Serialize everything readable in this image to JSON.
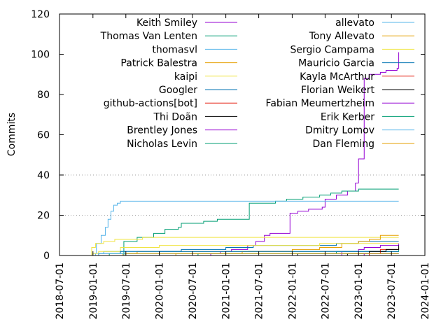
{
  "chart_data": {
    "type": "line",
    "title": "",
    "xlabel": "",
    "ylabel": "Commits",
    "x_axis": "date",
    "xlim": [
      "2018-07-01",
      "2024-01-01"
    ],
    "ylim": [
      0,
      120
    ],
    "x_ticks": [
      "2018-07-01",
      "2019-01-01",
      "2019-07-01",
      "2020-01-01",
      "2020-07-01",
      "2021-01-01",
      "2021-07-01",
      "2022-01-01",
      "2022-07-01",
      "2023-01-01",
      "2023-07-01",
      "2024-01-01"
    ],
    "y_ticks": [
      0,
      20,
      40,
      60,
      80,
      100,
      120
    ],
    "y_gridlines": [
      20,
      40
    ],
    "legend_position": "top, two columns",
    "series": [
      {
        "name": "Keith Smiley",
        "color": "#9400d3",
        "points": [
          [
            "2020-09-20",
            0
          ],
          [
            "2020-10-10",
            1
          ],
          [
            "2020-12-01",
            2
          ],
          [
            "2021-02-01",
            3
          ],
          [
            "2021-05-01",
            5
          ],
          [
            "2021-06-15",
            7
          ],
          [
            "2021-08-01",
            10
          ],
          [
            "2021-09-01",
            11
          ],
          [
            "2021-12-01",
            11
          ],
          [
            "2021-12-20",
            21
          ],
          [
            "2022-02-01",
            22
          ],
          [
            "2022-04-01",
            23
          ],
          [
            "2022-06-15",
            24
          ],
          [
            "2022-07-01",
            28
          ],
          [
            "2022-09-01",
            30
          ],
          [
            "2022-11-01",
            32
          ],
          [
            "2022-12-15",
            36
          ],
          [
            "2023-01-01",
            48
          ],
          [
            "2023-02-01",
            88
          ],
          [
            "2023-03-01",
            90
          ],
          [
            "2023-05-01",
            91
          ],
          [
            "2023-06-01",
            92
          ],
          [
            "2023-08-01",
            93
          ],
          [
            "2023-08-10",
            101
          ]
        ]
      },
      {
        "name": "Thomas Van Lenten",
        "color": "#009e73",
        "points": [
          [
            "2019-06-01",
            0
          ],
          [
            "2019-06-20",
            7
          ],
          [
            "2019-09-01",
            9
          ],
          [
            "2019-12-01",
            11
          ],
          [
            "2020-02-01",
            13
          ],
          [
            "2020-04-15",
            14
          ],
          [
            "2020-05-01",
            16
          ],
          [
            "2020-09-01",
            17
          ],
          [
            "2020-11-15",
            18
          ],
          [
            "2021-05-01",
            18
          ],
          [
            "2021-05-10",
            26
          ],
          [
            "2021-07-01",
            26
          ],
          [
            "2021-10-01",
            27
          ],
          [
            "2021-12-01",
            28
          ],
          [
            "2022-03-01",
            29
          ],
          [
            "2022-06-01",
            30
          ],
          [
            "2022-08-01",
            31
          ],
          [
            "2022-10-01",
            32
          ],
          [
            "2023-01-01",
            33
          ],
          [
            "2023-08-10",
            33
          ]
        ]
      },
      {
        "name": "thomasvl",
        "color": "#56b4e9",
        "points": [
          [
            "2018-12-20",
            0
          ],
          [
            "2019-01-01",
            1
          ],
          [
            "2019-01-20",
            6
          ],
          [
            "2019-02-15",
            10
          ],
          [
            "2019-03-10",
            14
          ],
          [
            "2019-03-25",
            18
          ],
          [
            "2019-04-10",
            22
          ],
          [
            "2019-04-25",
            25
          ],
          [
            "2019-05-15",
            26
          ],
          [
            "2019-06-01",
            27
          ],
          [
            "2023-08-10",
            27
          ]
        ]
      },
      {
        "name": "Patrick Balestra",
        "color": "#e69f00",
        "points": [
          [
            "2019-06-01",
            0
          ],
          [
            "2019-06-15",
            1
          ],
          [
            "2019-09-01",
            2
          ],
          [
            "2021-06-01",
            2
          ],
          [
            "2023-08-10",
            2
          ]
        ]
      },
      {
        "name": "kaipi",
        "color": "#f0e442",
        "points": [
          [
            "2018-12-15",
            0
          ],
          [
            "2018-12-25",
            4
          ],
          [
            "2019-01-15",
            6
          ],
          [
            "2019-03-01",
            7
          ],
          [
            "2019-05-01",
            8
          ],
          [
            "2019-10-01",
            9
          ],
          [
            "2022-06-01",
            9
          ],
          [
            "2023-08-10",
            9
          ]
        ]
      },
      {
        "name": "Googler",
        "color": "#0072b2",
        "points": [
          [
            "2019-12-01",
            0
          ],
          [
            "2020-01-01",
            2
          ],
          [
            "2020-05-01",
            3
          ],
          [
            "2021-01-01",
            4
          ],
          [
            "2021-06-01",
            5
          ],
          [
            "2022-09-01",
            6
          ],
          [
            "2023-01-01",
            7
          ],
          [
            "2023-08-10",
            7
          ]
        ]
      },
      {
        "name": "github-actions[bot]",
        "color": "#e51e10",
        "points": [
          [
            "2022-12-01",
            0
          ],
          [
            "2023-01-01",
            1
          ],
          [
            "2023-03-01",
            2
          ],
          [
            "2023-08-10",
            2
          ]
        ]
      },
      {
        "name": "Thi Doãn",
        "color": "#000000",
        "points": [
          [
            "2022-01-01",
            0
          ],
          [
            "2022-02-01",
            1
          ],
          [
            "2023-08-10",
            1
          ]
        ]
      },
      {
        "name": "Brentley Jones",
        "color": "#9400d3",
        "points": [
          [
            "2022-09-01",
            0
          ],
          [
            "2022-10-01",
            2
          ],
          [
            "2023-01-01",
            3
          ],
          [
            "2023-02-01",
            4
          ],
          [
            "2023-05-01",
            5
          ],
          [
            "2023-08-10",
            6
          ]
        ]
      },
      {
        "name": "Nicholas Levin",
        "color": "#009e73",
        "points": [
          [
            "2020-07-01",
            0
          ],
          [
            "2020-08-01",
            1
          ],
          [
            "2021-12-01",
            1
          ],
          [
            "2022-09-01",
            2
          ],
          [
            "2023-08-10",
            3
          ]
        ]
      },
      {
        "name": "allevato",
        "color": "#56b4e9",
        "points": [
          [
            "2018-12-25",
            0
          ],
          [
            "2019-01-15",
            1
          ],
          [
            "2019-03-01",
            2
          ],
          [
            "2021-01-01",
            2
          ],
          [
            "2023-08-10",
            2
          ]
        ]
      },
      {
        "name": "Tony Allevato",
        "color": "#e69f00",
        "points": [
          [
            "2020-03-01",
            0
          ],
          [
            "2020-04-01",
            1
          ],
          [
            "2021-04-01",
            2
          ],
          [
            "2022-01-01",
            3
          ],
          [
            "2022-06-01",
            4
          ],
          [
            "2022-10-01",
            6
          ],
          [
            "2023-01-01",
            7
          ],
          [
            "2023-03-01",
            8
          ],
          [
            "2023-05-01",
            10
          ],
          [
            "2023-08-10",
            10
          ]
        ]
      },
      {
        "name": "Sergio Campama",
        "color": "#f0e442",
        "points": [
          [
            "2018-12-20",
            0
          ],
          [
            "2019-01-01",
            1
          ],
          [
            "2019-02-01",
            2
          ],
          [
            "2019-06-01",
            4
          ],
          [
            "2020-01-01",
            5
          ],
          [
            "2021-06-01",
            5
          ],
          [
            "2022-06-01",
            6
          ],
          [
            "2023-08-10",
            6
          ]
        ]
      },
      {
        "name": "Mauricio Garcia",
        "color": "#0072b2",
        "points": [
          [
            "2019-01-01",
            0
          ],
          [
            "2019-02-01",
            1
          ],
          [
            "2019-06-01",
            2
          ],
          [
            "2023-08-10",
            2
          ]
        ]
      },
      {
        "name": "Kayla McArthur",
        "color": "#e51e10",
        "points": [
          [
            "2023-02-01",
            0
          ],
          [
            "2023-03-01",
            1
          ],
          [
            "2023-05-01",
            3
          ],
          [
            "2023-08-10",
            4
          ]
        ]
      },
      {
        "name": "Florian Weikert",
        "color": "#000000",
        "points": [
          [
            "2022-10-01",
            0
          ],
          [
            "2022-11-01",
            1
          ],
          [
            "2023-03-01",
            2
          ],
          [
            "2023-06-01",
            3
          ],
          [
            "2023-08-10",
            5
          ]
        ]
      },
      {
        "name": "Fabian Meumertzheim",
        "color": "#9400d3",
        "points": [
          [
            "2023-01-01",
            0
          ],
          [
            "2023-02-01",
            1
          ],
          [
            "2023-08-10",
            1
          ]
        ]
      },
      {
        "name": "Erik Kerber",
        "color": "#009e73",
        "points": [
          [
            "2019-03-01",
            0
          ],
          [
            "2019-04-01",
            1
          ],
          [
            "2023-08-10",
            1
          ]
        ]
      },
      {
        "name": "Dmitry Lomov",
        "color": "#56b4e9",
        "points": [
          [
            "2019-01-01",
            0
          ],
          [
            "2019-02-01",
            1
          ],
          [
            "2023-08-10",
            1
          ]
        ]
      },
      {
        "name": "Dan Fleming",
        "color": "#e69f00",
        "points": [
          [
            "2019-06-01",
            0
          ],
          [
            "2019-07-01",
            1
          ],
          [
            "2023-08-10",
            1
          ]
        ]
      }
    ]
  }
}
